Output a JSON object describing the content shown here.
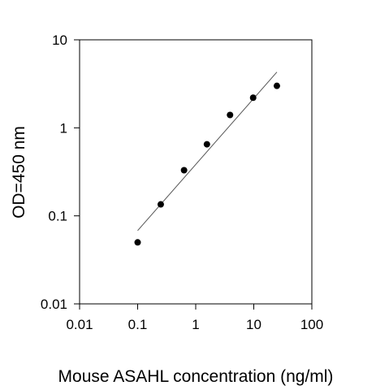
{
  "chart_data": {
    "type": "scatter",
    "x_scale": "log",
    "y_scale": "log",
    "xlabel": "Mouse ASAHL concentration (ng/ml)",
    "ylabel": "OD=450 nm",
    "xlim": [
      0.01,
      100
    ],
    "ylim": [
      0.01,
      10
    ],
    "x_ticks": [
      0.01,
      0.1,
      1,
      10,
      100
    ],
    "x_tick_labels": [
      "0.01",
      "0.1",
      "1",
      "10",
      "100"
    ],
    "y_ticks": [
      0.01,
      0.1,
      1,
      10
    ],
    "y_tick_labels": [
      "0.01",
      "0.1",
      "1",
      "10"
    ],
    "grid": false,
    "series": [
      {
        "type": "scatter",
        "x": [
          0.1,
          0.25,
          0.63,
          1.56,
          3.9,
          9.75,
          25
        ],
        "y": [
          0.05,
          0.135,
          0.33,
          0.65,
          1.4,
          2.2,
          3.0
        ]
      }
    ],
    "fit_line": {
      "type": "line",
      "x": [
        0.1,
        25
      ],
      "y": [
        0.068,
        4.3
      ]
    },
    "colors": {
      "points": "#000000",
      "fit_line": "#555555",
      "axes": "#000000"
    }
  }
}
